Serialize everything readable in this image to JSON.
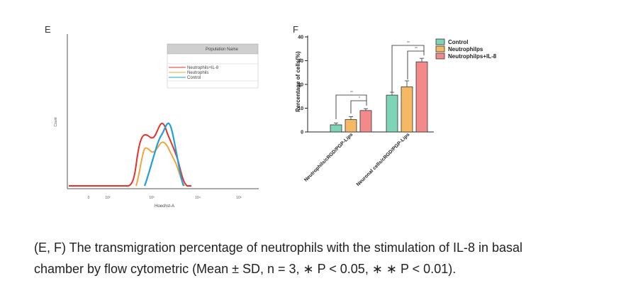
{
  "panel_e": {
    "letter": "E",
    "ylabel": "Count",
    "xlabel": "Hoechst-A",
    "tick_labels": [
      "0",
      "10²",
      "10³",
      "10⁴",
      "10⁵"
    ],
    "legend_title": "Population Name",
    "legend_entries": [
      {
        "name": "Neutrophils+IL-8",
        "color": "#e8302a"
      },
      {
        "name": "Neutrophils",
        "color": "#f2a43a"
      },
      {
        "name": "Control",
        "color": "#1fa0dc"
      }
    ]
  },
  "panel_f": {
    "letter": "F",
    "significance": [
      "**",
      "*",
      "**",
      "**"
    ]
  },
  "chart_data": {
    "type": "bar",
    "ylabel": "Percentage of cells(%)",
    "ylim": [
      0,
      40
    ],
    "yticks": [
      "0",
      "10",
      "20",
      "30",
      "40"
    ],
    "categories": [
      "Neutrophils/cRGD/PGP-Lips",
      "Neuronal cells/cRGD/PGP-Lips"
    ],
    "legend_position": "top-right",
    "series": [
      {
        "name": "Control",
        "color": "#7fd3b6",
        "values": [
          3,
          15.5
        ],
        "errors": [
          0.8,
          1.2
        ]
      },
      {
        "name": "Neutrophilps",
        "color": "#f5b865",
        "values": [
          5.2,
          19
        ],
        "errors": [
          1.2,
          2.5
        ]
      },
      {
        "name": "Neutrophilps+IL-8",
        "color": "#f28a8a",
        "values": [
          9,
          29.5
        ],
        "errors": [
          0.8,
          1.5
        ]
      }
    ]
  },
  "caption": {
    "line1": "(E, F) The transmigration percentage of neutrophils with the stimulation of IL-8 in basal",
    "line2": "chamber by flow cytometric (Mean ± SD, n = 3, ∗ P < 0.05, ∗ ∗ P < 0.01)."
  }
}
